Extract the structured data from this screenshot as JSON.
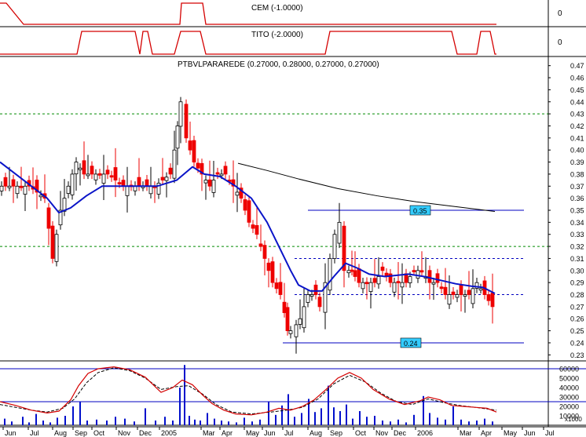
{
  "colors": {
    "indicator_line": "#d40000",
    "moving_average": "#0a14c8",
    "long_average": "#000000",
    "down_candle": "#ee0000",
    "up_candle": "#ffffff",
    "volume_bar": "#0010cc",
    "hline_blue": "#0000c0",
    "hline_green": "#008a00",
    "hline_red": "#dd0000",
    "box_fill": "#33ccff"
  },
  "panels": {
    "cem": {
      "title": "CEM (-1.0000)",
      "axis_label": "0"
    },
    "tito": {
      "title": "TITO (-2.0000)",
      "axis_label": "0"
    },
    "price": {
      "title": "PTBVLPARAREDE (0.27000, 0.28000, 0.27000, 0.27000)"
    },
    "volume": {
      "multiplier": "x1000"
    }
  },
  "chart_data": [
    {
      "type": "line",
      "title": "CEM (-1.0000)",
      "y_label": "0",
      "x": [
        0,
        2,
        4,
        6,
        8,
        30,
        32,
        34,
        36,
        38,
        48,
        70,
        229,
        231,
        233,
        235,
        237,
        241,
        258,
        262,
        265,
        270,
        280,
        632
      ],
      "values": [
        1,
        1,
        1,
        1,
        1,
        0,
        0,
        0,
        0,
        0,
        0,
        0,
        0,
        1,
        1,
        1,
        1,
        1,
        1,
        0,
        0,
        0,
        0,
        0
      ]
    },
    {
      "type": "line",
      "title": "TITO (-2.0000)",
      "y_label": "0",
      "x": [
        0,
        98,
        104,
        110,
        172,
        178,
        182,
        188,
        194,
        222,
        230,
        255,
        262,
        270,
        390,
        414,
        420,
        425,
        570,
        575,
        582,
        589,
        607,
        612,
        619,
        624,
        630,
        632
      ],
      "values": [
        0,
        0,
        1,
        1,
        1,
        0,
        1,
        1,
        0,
        0,
        1,
        1,
        0,
        0,
        0,
        0,
        1,
        1,
        1,
        1,
        0,
        0,
        0,
        1,
        1,
        1,
        0,
        0
      ]
    },
    {
      "type": "candlestick",
      "title": "PTBVLPARAREDE (0.27000, 0.28000, 0.27000, 0.27000)",
      "x_tick_labels": [
        "Jun",
        "Jul",
        "Aug",
        "Sep",
        "Oct",
        "Nov",
        "Dec",
        "2005",
        "Mar",
        "Apr",
        "May",
        "Jun",
        "Jul",
        "Aug",
        "Sep",
        "Oct",
        "Nov",
        "Dec",
        "2006",
        "Mar",
        "Apr",
        "May",
        "Jun",
        "Jul"
      ],
      "y_tick_labels": [
        "0.47",
        "0.46",
        "0.45",
        "0.44",
        "0.43",
        "0.42",
        "0.41",
        "0.40",
        "0.39",
        "0.38",
        "0.37",
        "0.36",
        "0.35",
        "0.34",
        "0.33",
        "0.32",
        "0.31",
        "0.30",
        "0.29",
        "0.28",
        "0.27",
        "0.26",
        "0.25",
        "0.24",
        "0.23"
      ],
      "ylim": [
        0.225,
        0.475
      ],
      "last_ohlc": {
        "open": 0.27,
        "high": 0.28,
        "close": 0.27,
        "low": 0.27
      },
      "close_series": [
        {
          "x": 0,
          "v": 0.37
        },
        {
          "x": 20,
          "v": 0.37
        },
        {
          "x": 40,
          "v": 0.37
        },
        {
          "x": 60,
          "v": 0.36
        },
        {
          "x": 70,
          "v": 0.31
        },
        {
          "x": 80,
          "v": 0.35
        },
        {
          "x": 90,
          "v": 0.37
        },
        {
          "x": 100,
          "v": 0.39
        },
        {
          "x": 110,
          "v": 0.38
        },
        {
          "x": 120,
          "v": 0.38
        },
        {
          "x": 140,
          "v": 0.38
        },
        {
          "x": 160,
          "v": 0.37
        },
        {
          "x": 180,
          "v": 0.37
        },
        {
          "x": 200,
          "v": 0.37
        },
        {
          "x": 220,
          "v": 0.38
        },
        {
          "x": 228,
          "v": 0.42
        },
        {
          "x": 235,
          "v": 0.44
        },
        {
          "x": 240,
          "v": 0.41
        },
        {
          "x": 250,
          "v": 0.39
        },
        {
          "x": 260,
          "v": 0.38
        },
        {
          "x": 270,
          "v": 0.37
        },
        {
          "x": 280,
          "v": 0.38
        },
        {
          "x": 290,
          "v": 0.38
        },
        {
          "x": 300,
          "v": 0.37
        },
        {
          "x": 310,
          "v": 0.36
        },
        {
          "x": 320,
          "v": 0.34
        },
        {
          "x": 330,
          "v": 0.33
        },
        {
          "x": 340,
          "v": 0.31
        },
        {
          "x": 350,
          "v": 0.29
        },
        {
          "x": 360,
          "v": 0.28
        },
        {
          "x": 368,
          "v": 0.25
        },
        {
          "x": 375,
          "v": 0.25
        },
        {
          "x": 385,
          "v": 0.26
        },
        {
          "x": 395,
          "v": 0.28
        },
        {
          "x": 405,
          "v": 0.28
        },
        {
          "x": 412,
          "v": 0.27
        },
        {
          "x": 418,
          "v": 0.29
        },
        {
          "x": 424,
          "v": 0.31
        },
        {
          "x": 430,
          "v": 0.33
        },
        {
          "x": 436,
          "v": 0.34
        },
        {
          "x": 442,
          "v": 0.3
        },
        {
          "x": 450,
          "v": 0.3
        },
        {
          "x": 460,
          "v": 0.29
        },
        {
          "x": 470,
          "v": 0.29
        },
        {
          "x": 480,
          "v": 0.29
        },
        {
          "x": 490,
          "v": 0.3
        },
        {
          "x": 500,
          "v": 0.29
        },
        {
          "x": 510,
          "v": 0.29
        },
        {
          "x": 520,
          "v": 0.29
        },
        {
          "x": 530,
          "v": 0.3
        },
        {
          "x": 540,
          "v": 0.3
        },
        {
          "x": 550,
          "v": 0.29
        },
        {
          "x": 560,
          "v": 0.29
        },
        {
          "x": 570,
          "v": 0.28
        },
        {
          "x": 580,
          "v": 0.28
        },
        {
          "x": 590,
          "v": 0.28
        },
        {
          "x": 600,
          "v": 0.28
        },
        {
          "x": 610,
          "v": 0.29
        },
        {
          "x": 620,
          "v": 0.28
        },
        {
          "x": 630,
          "v": 0.27
        }
      ],
      "moving_average": [
        {
          "x": 0,
          "v": 0.39
        },
        {
          "x": 20,
          "v": 0.38
        },
        {
          "x": 40,
          "v": 0.37
        },
        {
          "x": 60,
          "v": 0.36
        },
        {
          "x": 75,
          "v": 0.348
        },
        {
          "x": 90,
          "v": 0.352
        },
        {
          "x": 110,
          "v": 0.362
        },
        {
          "x": 130,
          "v": 0.37
        },
        {
          "x": 160,
          "v": 0.37
        },
        {
          "x": 200,
          "v": 0.37
        },
        {
          "x": 225,
          "v": 0.375
        },
        {
          "x": 245,
          "v": 0.386
        },
        {
          "x": 260,
          "v": 0.38
        },
        {
          "x": 280,
          "v": 0.378
        },
        {
          "x": 300,
          "v": 0.37
        },
        {
          "x": 320,
          "v": 0.36
        },
        {
          "x": 340,
          "v": 0.34
        },
        {
          "x": 355,
          "v": 0.32
        },
        {
          "x": 370,
          "v": 0.3
        },
        {
          "x": 380,
          "v": 0.288
        },
        {
          "x": 395,
          "v": 0.283
        },
        {
          "x": 410,
          "v": 0.283
        },
        {
          "x": 425,
          "v": 0.295
        },
        {
          "x": 440,
          "v": 0.306
        },
        {
          "x": 455,
          "v": 0.302
        },
        {
          "x": 470,
          "v": 0.297
        },
        {
          "x": 490,
          "v": 0.295
        },
        {
          "x": 520,
          "v": 0.297
        },
        {
          "x": 540,
          "v": 0.295
        },
        {
          "x": 560,
          "v": 0.292
        },
        {
          "x": 580,
          "v": 0.289
        },
        {
          "x": 600,
          "v": 0.287
        },
        {
          "x": 615,
          "v": 0.286
        },
        {
          "x": 630,
          "v": 0.281
        }
      ],
      "long_average": [
        {
          "x": 303,
          "v": 0.389
        },
        {
          "x": 340,
          "v": 0.383
        },
        {
          "x": 380,
          "v": 0.376
        },
        {
          "x": 430,
          "v": 0.368
        },
        {
          "x": 480,
          "v": 0.362
        },
        {
          "x": 530,
          "v": 0.357
        },
        {
          "x": 580,
          "v": 0.353
        },
        {
          "x": 630,
          "v": 0.349
        }
      ],
      "horizontal_lines": [
        {
          "v": 0.35,
          "style": "solid",
          "color": "blue",
          "x_start": 392,
          "x_end": 667,
          "label": "0.35"
        },
        {
          "v": 0.24,
          "style": "solid",
          "color": "blue",
          "x_start": 360,
          "x_end": 667,
          "label": "0.24"
        },
        {
          "v": 0.43,
          "style": "dashed",
          "color": "green"
        },
        {
          "v": 0.32,
          "style": "dashed",
          "color": "green"
        },
        {
          "v": 0.31,
          "style": "dashed",
          "color": "blue",
          "x_start": 375,
          "x_end": 667
        },
        {
          "v": 0.28,
          "style": "dashed",
          "color": "blue",
          "x_start": 375,
          "x_end": 667
        }
      ]
    },
    {
      "type": "bar",
      "title": "",
      "y_tick_labels": [
        "60000",
        "50000",
        "40000",
        "30000",
        "20000",
        "10000"
      ],
      "ylim": [
        0,
        65000
      ],
      "unit_label": "x1000",
      "bars": [
        {
          "x": 5,
          "v": 7000
        },
        {
          "x": 14,
          "v": 4000
        },
        {
          "x": 28,
          "v": 9000
        },
        {
          "x": 36,
          "v": 3000
        },
        {
          "x": 45,
          "v": 12000
        },
        {
          "x": 54,
          "v": 5000
        },
        {
          "x": 63,
          "v": 3000
        },
        {
          "x": 72,
          "v": 8000
        },
        {
          "x": 82,
          "v": 10000
        },
        {
          "x": 92,
          "v": 20000
        },
        {
          "x": 101,
          "v": 25000
        },
        {
          "x": 110,
          "v": 5000
        },
        {
          "x": 122,
          "v": 6000
        },
        {
          "x": 135,
          "v": 5000
        },
        {
          "x": 146,
          "v": 9000
        },
        {
          "x": 158,
          "v": 7000
        },
        {
          "x": 170,
          "v": 4000
        },
        {
          "x": 184,
          "v": 18000
        },
        {
          "x": 197,
          "v": 5000
        },
        {
          "x": 209,
          "v": 9000
        },
        {
          "x": 219,
          "v": 5000
        },
        {
          "x": 228,
          "v": 40000
        },
        {
          "x": 234,
          "v": 64000
        },
        {
          "x": 240,
          "v": 10000
        },
        {
          "x": 247,
          "v": 6000
        },
        {
          "x": 254,
          "v": 5000
        },
        {
          "x": 263,
          "v": 13000
        },
        {
          "x": 272,
          "v": 7000
        },
        {
          "x": 281,
          "v": 5000
        },
        {
          "x": 290,
          "v": 4000
        },
        {
          "x": 300,
          "v": 3000
        },
        {
          "x": 310,
          "v": 8000
        },
        {
          "x": 320,
          "v": 4000
        },
        {
          "x": 330,
          "v": 6000
        },
        {
          "x": 341,
          "v": 25000
        },
        {
          "x": 350,
          "v": 11000
        },
        {
          "x": 358,
          "v": 21000
        },
        {
          "x": 366,
          "v": 33000
        },
        {
          "x": 374,
          "v": 9000
        },
        {
          "x": 383,
          "v": 13000
        },
        {
          "x": 392,
          "v": 28000
        },
        {
          "x": 400,
          "v": 14000
        },
        {
          "x": 408,
          "v": 18000
        },
        {
          "x": 417,
          "v": 42000
        },
        {
          "x": 424,
          "v": 19000
        },
        {
          "x": 432,
          "v": 15000
        },
        {
          "x": 440,
          "v": 22000
        },
        {
          "x": 448,
          "v": 7000
        },
        {
          "x": 457,
          "v": 15000
        },
        {
          "x": 466,
          "v": 9000
        },
        {
          "x": 476,
          "v": 10000
        },
        {
          "x": 486,
          "v": 5000
        },
        {
          "x": 496,
          "v": 4000
        },
        {
          "x": 506,
          "v": 6000
        },
        {
          "x": 516,
          "v": 3000
        },
        {
          "x": 526,
          "v": 11000
        },
        {
          "x": 538,
          "v": 31000
        },
        {
          "x": 546,
          "v": 13000
        },
        {
          "x": 556,
          "v": 8000
        },
        {
          "x": 566,
          "v": 6000
        },
        {
          "x": 576,
          "v": 20000
        },
        {
          "x": 586,
          "v": 6000
        },
        {
          "x": 596,
          "v": 4000
        },
        {
          "x": 606,
          "v": 5000
        },
        {
          "x": 616,
          "v": 7000
        },
        {
          "x": 626,
          "v": 4000
        }
      ],
      "line_solid": [
        {
          "x": 0,
          "v": 25000
        },
        {
          "x": 20,
          "v": 21000
        },
        {
          "x": 40,
          "v": 16000
        },
        {
          "x": 60,
          "v": 13000
        },
        {
          "x": 75,
          "v": 15000
        },
        {
          "x": 90,
          "v": 27000
        },
        {
          "x": 100,
          "v": 42000
        },
        {
          "x": 112,
          "v": 55000
        },
        {
          "x": 125,
          "v": 60000
        },
        {
          "x": 145,
          "v": 62000
        },
        {
          "x": 165,
          "v": 59000
        },
        {
          "x": 185,
          "v": 51000
        },
        {
          "x": 205,
          "v": 35000
        },
        {
          "x": 220,
          "v": 40000
        },
        {
          "x": 232,
          "v": 48000
        },
        {
          "x": 245,
          "v": 43000
        },
        {
          "x": 258,
          "v": 32000
        },
        {
          "x": 270,
          "v": 23000
        },
        {
          "x": 285,
          "v": 16000
        },
        {
          "x": 300,
          "v": 12000
        },
        {
          "x": 320,
          "v": 11000
        },
        {
          "x": 340,
          "v": 14000
        },
        {
          "x": 355,
          "v": 18000
        },
        {
          "x": 370,
          "v": 16000
        },
        {
          "x": 385,
          "v": 20000
        },
        {
          "x": 400,
          "v": 27000
        },
        {
          "x": 415,
          "v": 38000
        },
        {
          "x": 430,
          "v": 50000
        },
        {
          "x": 445,
          "v": 56000
        },
        {
          "x": 460,
          "v": 50000
        },
        {
          "x": 475,
          "v": 38000
        },
        {
          "x": 495,
          "v": 28000
        },
        {
          "x": 515,
          "v": 22000
        },
        {
          "x": 535,
          "v": 26000
        },
        {
          "x": 545,
          "v": 30000
        },
        {
          "x": 560,
          "v": 27000
        },
        {
          "x": 575,
          "v": 21000
        },
        {
          "x": 590,
          "v": 20000
        },
        {
          "x": 605,
          "v": 19000
        },
        {
          "x": 620,
          "v": 18000
        },
        {
          "x": 632,
          "v": 14000
        }
      ],
      "line_dashed": [
        {
          "x": 0,
          "v": 22000
        },
        {
          "x": 20,
          "v": 19000
        },
        {
          "x": 40,
          "v": 16000
        },
        {
          "x": 60,
          "v": 14000
        },
        {
          "x": 80,
          "v": 18000
        },
        {
          "x": 95,
          "v": 28000
        },
        {
          "x": 110,
          "v": 45000
        },
        {
          "x": 125,
          "v": 56000
        },
        {
          "x": 145,
          "v": 61000
        },
        {
          "x": 165,
          "v": 58000
        },
        {
          "x": 185,
          "v": 50000
        },
        {
          "x": 205,
          "v": 38000
        },
        {
          "x": 225,
          "v": 41000
        },
        {
          "x": 240,
          "v": 42000
        },
        {
          "x": 258,
          "v": 33000
        },
        {
          "x": 275,
          "v": 22000
        },
        {
          "x": 295,
          "v": 14000
        },
        {
          "x": 320,
          "v": 12000
        },
        {
          "x": 345,
          "v": 14000
        },
        {
          "x": 365,
          "v": 16000
        },
        {
          "x": 385,
          "v": 19000
        },
        {
          "x": 405,
          "v": 28000
        },
        {
          "x": 425,
          "v": 44000
        },
        {
          "x": 445,
          "v": 53000
        },
        {
          "x": 465,
          "v": 46000
        },
        {
          "x": 485,
          "v": 34000
        },
        {
          "x": 505,
          "v": 25000
        },
        {
          "x": 525,
          "v": 22000
        },
        {
          "x": 545,
          "v": 28000
        },
        {
          "x": 565,
          "v": 24000
        },
        {
          "x": 585,
          "v": 21000
        },
        {
          "x": 605,
          "v": 19000
        },
        {
          "x": 632,
          "v": 16000
        }
      ],
      "horizontal_lines": [
        {
          "v": 60000,
          "color": "blue"
        },
        {
          "v": 25000,
          "color": "blue"
        }
      ]
    }
  ]
}
